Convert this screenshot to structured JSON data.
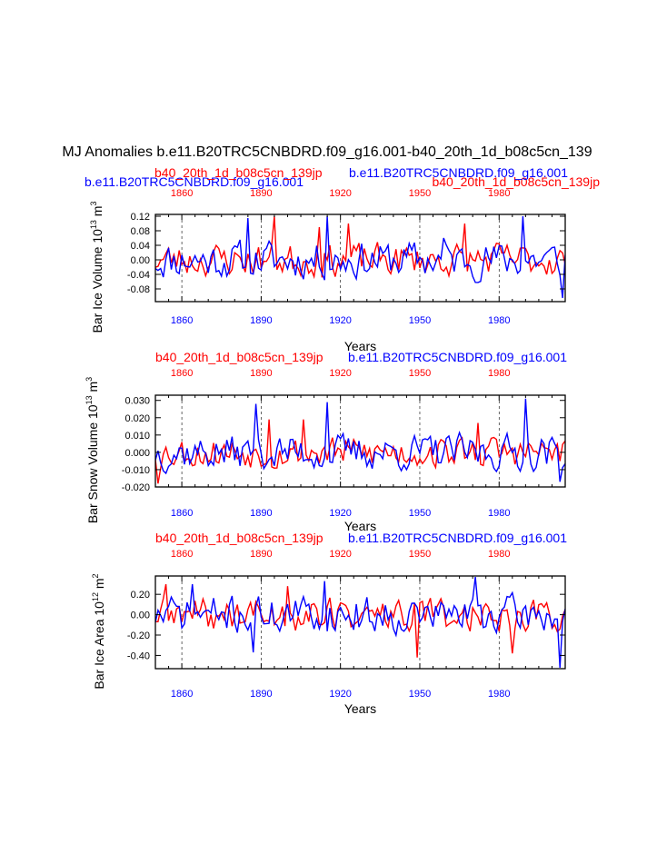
{
  "figure": {
    "title": "MJ Anomalies b.e11.B20TRC5CNBDRD.f09_g16.001-b40_20th_1d_b08c5cn_139",
    "caseA": "b.e11.B20TRC5CNBDRD.f09_g16.001",
    "caseB": "b40_20th_1d_b08c5cn_139jp",
    "colors": {
      "caseA": "#0000ff",
      "caseB": "#ff0000",
      "axis": "#000000"
    }
  },
  "chart_data": [
    {
      "type": "line",
      "ylabel": "Bar Ice Volume 10",
      "ylabel_sup": "13",
      "ylabel_unit": " m",
      "ylabel_unit_sup": "3",
      "xlabel": "Years",
      "top_left_label": "b.e11.B20TRC5CNBDRD.f09_g16.001",
      "top_left_color": "#0000ff",
      "top_right_label": "b40_20th_1d_b08c5cn_139jp",
      "top_right_color": "#ff0000",
      "top_label_overlay": "b40_20th_1d_b08c5cn_139jp",
      "top_label_overlay_color": "#ff0000",
      "top_label_overlay2": "b.e11.B20TRC5CNBDRD.f09_g16.001",
      "top_label_overlay2_color": "#0000ff",
      "xlim": [
        1850,
        2005
      ],
      "ylim": [
        -0.115,
        0.125
      ],
      "yticks": [
        -0.08,
        -0.04,
        0.0,
        0.04,
        0.08,
        0.12
      ],
      "ytick_labels": [
        "-0.08",
        "-0.04",
        "0.00",
        "0.04",
        "0.08",
        "0.12"
      ],
      "xticks": [
        1860,
        1890,
        1920,
        1950,
        1980
      ],
      "xtick_labels": [
        "1860",
        "1890",
        "1920",
        "1950",
        "1980"
      ],
      "series": [
        {
          "name": "b.e11.B20TRC5CNBDRD.f09_g16.001",
          "color": "#0000ff",
          "amp": 0.04,
          "seed": 11,
          "spikes": [
            [
              1885,
              0.115
            ],
            [
              1915,
              0.12
            ],
            [
              1959,
              0.06
            ],
            [
              1989,
              0.12
            ],
            [
              2004,
              -0.105
            ]
          ]
        },
        {
          "name": "b40_20th_1d_b08c5cn_139jp",
          "color": "#ff0000",
          "amp": 0.035,
          "seed": 23,
          "spikes": [
            [
              1895,
              0.12
            ],
            [
              1912,
              0.09
            ],
            [
              1923,
              0.1
            ],
            [
              1967,
              0.1
            ]
          ]
        }
      ]
    },
    {
      "type": "line",
      "ylabel": "Bar Snow Volume 10",
      "ylabel_sup": "13",
      "ylabel_unit": " m",
      "ylabel_unit_sup": "3",
      "xlabel": "Years",
      "top_left_label": "b40_20th_1d_b08c5cn_139jp",
      "top_left_color": "#ff0000",
      "top_right_label": "b.e11.B20TRC5CNBDRD.f09_g16.001",
      "top_right_color": "#0000ff",
      "xlim": [
        1850,
        2005
      ],
      "ylim": [
        -0.02,
        0.033
      ],
      "yticks": [
        -0.02,
        -0.01,
        0.0,
        0.01,
        0.02,
        0.03
      ],
      "ytick_labels": [
        "-0.020",
        "-0.010",
        "0.000",
        "0.010",
        "0.020",
        "0.030"
      ],
      "xticks": [
        1860,
        1890,
        1920,
        1950,
        1980
      ],
      "xtick_labels": [
        "1860",
        "1890",
        "1920",
        "1950",
        "1980"
      ],
      "series": [
        {
          "name": "b.e11.B20TRC5CNBDRD.f09_g16.001",
          "color": "#0000ff",
          "amp": 0.008,
          "seed": 37,
          "spikes": [
            [
              1888,
              0.028
            ],
            [
              1915,
              0.029
            ],
            [
              1990,
              0.031
            ],
            [
              2003,
              -0.017
            ]
          ]
        },
        {
          "name": "b40_20th_1d_b08c5cn_139jp",
          "color": "#ff0000",
          "amp": 0.007,
          "seed": 53,
          "spikes": [
            [
              1851,
              -0.018
            ],
            [
              1893,
              0.019
            ],
            [
              1906,
              0.019
            ],
            [
              1972,
              0.017
            ]
          ]
        }
      ]
    },
    {
      "type": "line",
      "ylabel": "Bar Ice Area 10",
      "ylabel_sup": "12",
      "ylabel_unit": " m",
      "ylabel_unit_sup": "2",
      "xlabel": "Years",
      "top_left_label": "b40_20th_1d_b08c5cn_139jp",
      "top_left_color": "#ff0000",
      "top_right_label": "b.e11.B20TRC5CNBDRD.f09_g16.001",
      "top_right_color": "#0000ff",
      "xlim": [
        1850,
        2005
      ],
      "ylim": [
        -0.53,
        0.38
      ],
      "yticks": [
        -0.4,
        -0.2,
        0.0,
        0.2
      ],
      "ytick_labels": [
        "-0.40",
        "-0.20",
        "0.00",
        "0.20"
      ],
      "xticks": [
        1860,
        1890,
        1920,
        1950,
        1980
      ],
      "xtick_labels": [
        "1860",
        "1890",
        "1920",
        "1950",
        "1980"
      ],
      "series": [
        {
          "name": "b.e11.B20TRC5CNBDRD.f09_g16.001",
          "color": "#0000ff",
          "amp": 0.14,
          "seed": 71,
          "spikes": [
            [
              1864,
              0.3
            ],
            [
              1887,
              -0.37
            ],
            [
              1914,
              0.33
            ],
            [
              1971,
              0.37
            ],
            [
              2003,
              -0.52
            ]
          ]
        },
        {
          "name": "b40_20th_1d_b08c5cn_139jp",
          "color": "#ff0000",
          "amp": 0.13,
          "seed": 89,
          "spikes": [
            [
              1854,
              0.3
            ],
            [
              1900,
              0.28
            ],
            [
              1949,
              -0.42
            ],
            [
              1985,
              -0.38
            ]
          ]
        }
      ]
    }
  ]
}
